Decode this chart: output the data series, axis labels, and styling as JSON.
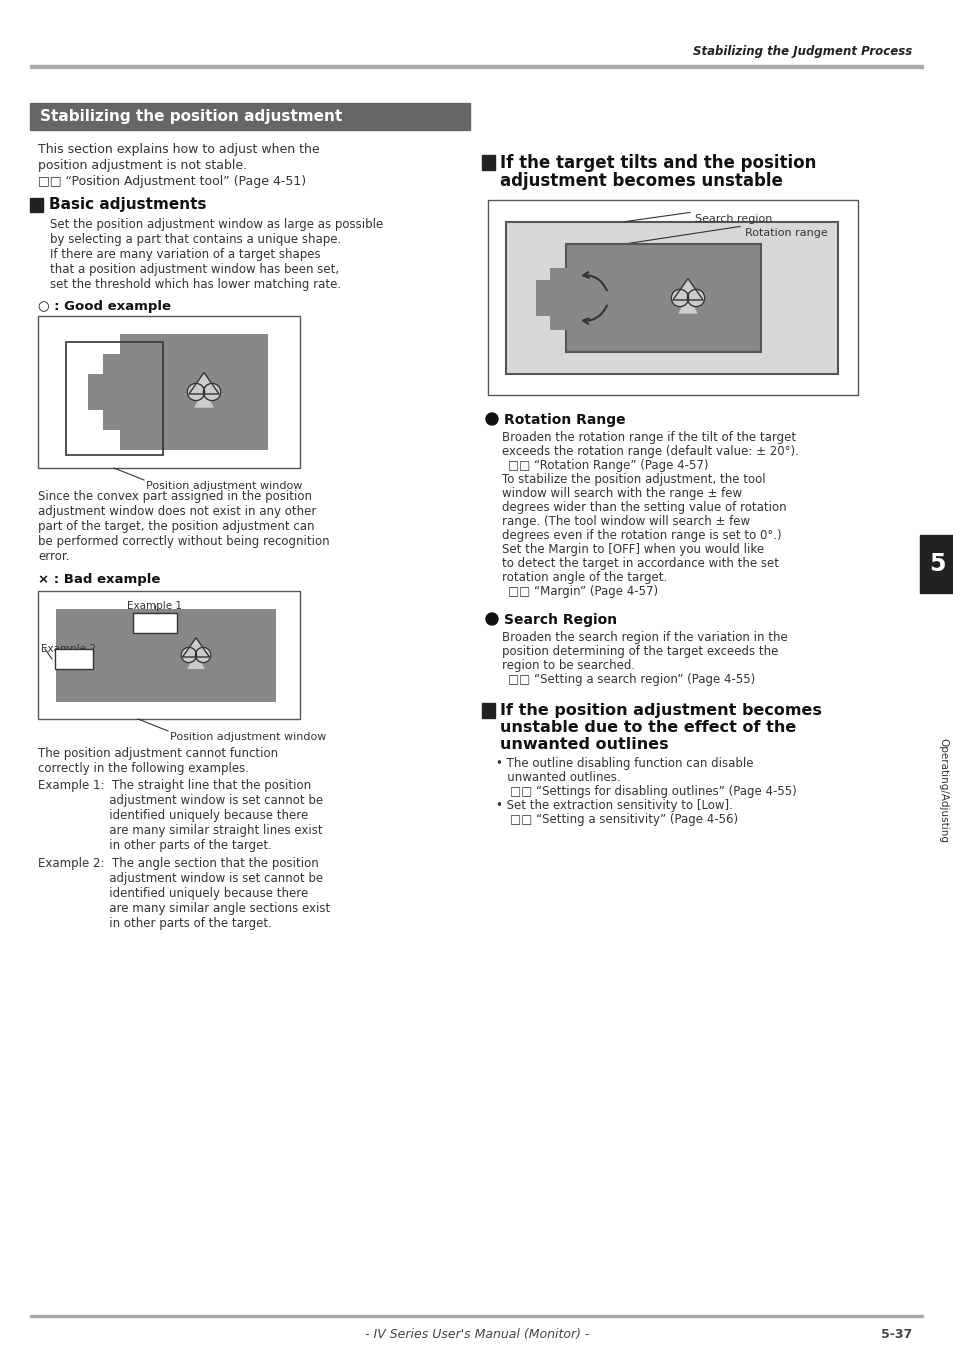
{
  "page_header_text": "Stabilizing the Judgment Process",
  "main_title": "Stabilizing the position adjustment",
  "intro_text_line1": "This section explains how to adjust when the",
  "intro_text_line2": "position adjustment is not stable.",
  "intro_text_line3": "□□ “Position Adjustment tool” (Page 4-51)",
  "section1_title": "Basic adjustments",
  "section1_body": [
    "Set the position adjustment window as large as possible",
    "by selecting a part that contains a unique shape.",
    "If there are many variation of a target shapes",
    "that a position adjustment window has been set,",
    "set the threshold which has lower matching rate."
  ],
  "good_example_label": "○ : Good example",
  "good_example_caption": "Position adjustment window",
  "good_example_text": [
    "Since the convex part assigned in the position",
    "adjustment window does not exist in any other",
    "part of the target, the position adjustment can",
    "be performed correctly without being recognition",
    "error."
  ],
  "bad_example_label": "× : Bad example",
  "bad_example_caption": "Position adjustment window",
  "example1_label": "Example 1",
  "example2_label": "Example 2",
  "bad_example_text": "The position adjustment cannot function",
  "bad_example_text2": "correctly in the following examples.",
  "example1_text_lines": [
    "Example 1:  The straight line that the position",
    "                   adjustment window is set cannot be",
    "                   identified uniquely because there",
    "                   are many similar straight lines exist",
    "                   in other parts of the target."
  ],
  "example2_text_lines": [
    "Example 2:  The angle section that the position",
    "                   adjustment window is set cannot be",
    "                   identified uniquely because there",
    "                   are many similar angle sections exist",
    "                   in other parts of the target."
  ],
  "section2_title_line1": "If the target tilts and the position",
  "section2_title_line2": "adjustment becomes unstable",
  "section2_caption": "Search region",
  "section2_caption2": "Rotation range",
  "rotation_range_title": "Rotation Range",
  "rotation_range_text": [
    "Broaden the rotation range if the tilt of the target",
    "exceeds the rotation range (default value: ± 20°).",
    "□□ “Rotation Range” (Page 4-57)",
    "To stabilize the position adjustment, the tool",
    "window will search with the range ± few",
    "degrees wider than the setting value of rotation",
    "range. (The tool window will search ± few",
    "degrees even if the rotation range is set to 0°.)",
    "Set the Margin to [OFF] when you would like",
    "to detect the target in accordance with the set",
    "rotation angle of the target.",
    "□□ “Margin” (Page 4-57)"
  ],
  "search_region_title": "Search Region",
  "search_region_text": [
    "Broaden the search region if the variation in the",
    "position determining of the target exceeds the",
    "region to be searched.",
    "□□ “Setting a search region” (Page 4-55)"
  ],
  "section3_title_line1": "If the position adjustment becomes",
  "section3_title_line2": "unstable due to the effect of the",
  "section3_title_line3": "unwanted outlines",
  "section3_text": [
    "• The outline disabling function can disable",
    "   unwanted outlines.",
    "□□ “Settings for disabling outlines” (Page 4-55)",
    "• Set the extraction sensitivity to [Low].",
    "□□ “Setting a sensitivity” (Page 4-56)"
  ],
  "footer_text": "- IV Series User's Manual (Monitor) -",
  "page_number": "5-37",
  "section_number": "5",
  "section_tab_label": "Operating/Adjusting",
  "bg_color": "#ffffff",
  "header_line_color": "#aaaaaa",
  "title_bg_color": "#666666",
  "title_text_color": "#ffffff",
  "section_header_color": "#222222",
  "body_text_color": "#333333",
  "diagram_gray": "#888888",
  "diagram_light_gray": "#cccccc",
  "diagram_mid_gray": "#bbbbbb",
  "diagram_dark_gray": "#555555",
  "diagram_outer_gray": "#d8d8d8"
}
